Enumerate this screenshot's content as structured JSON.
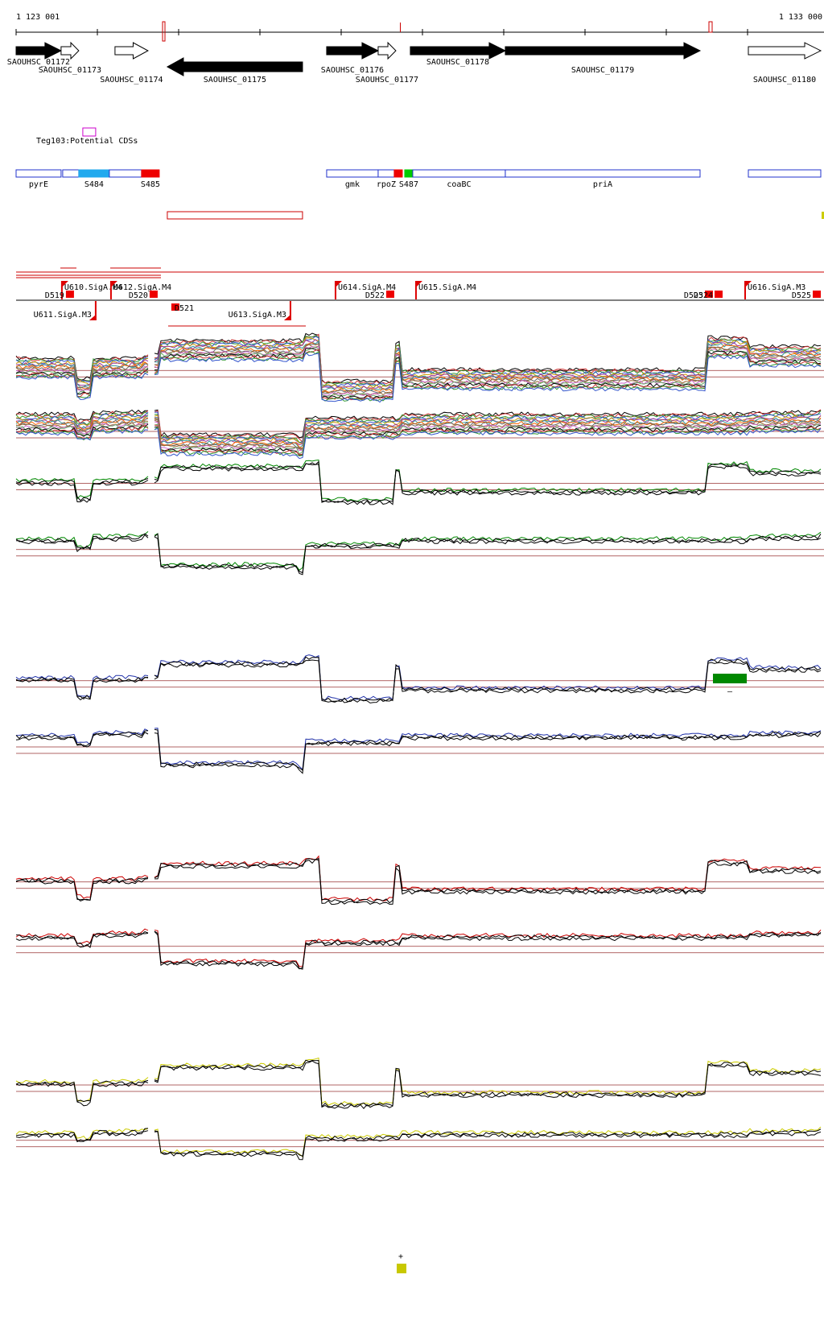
{
  "coords": {
    "start_label": "1 123 001",
    "end_label": "1 133 000",
    "start": 1123001,
    "end": 1133000
  },
  "genes": [
    {
      "label": "SAOUHSC_01172",
      "start": 1123001,
      "end": 1123560,
      "strand": "+",
      "filled": true,
      "row": 0
    },
    {
      "label": "SAOUHSC_01173",
      "start": 1123560,
      "end": 1123780,
      "strand": "+",
      "filled": false,
      "row": 1
    },
    {
      "label": "SAOUHSC_01174",
      "start": 1124230,
      "end": 1124640,
      "strand": "+",
      "filled": false,
      "row": 2
    },
    {
      "label": "SAOUHSC_01175",
      "start": 1124880,
      "end": 1126560,
      "strand": "-",
      "filled": true,
      "row": 2
    },
    {
      "label": "SAOUHSC_01176",
      "start": 1126860,
      "end": 1127500,
      "strand": "+",
      "filled": true,
      "row": 1
    },
    {
      "label": "SAOUHSC_01177",
      "start": 1127500,
      "end": 1127720,
      "strand": "+",
      "filled": false,
      "row": 2
    },
    {
      "label": "SAOUHSC_01178",
      "start": 1127900,
      "end": 1129080,
      "strand": "+",
      "filled": true,
      "row": 0
    },
    {
      "label": "SAOUHSC_01179",
      "start": 1129080,
      "end": 1131500,
      "strand": "+",
      "filled": true,
      "row": 1
    },
    {
      "label": "SAOUHSC_01180",
      "start": 1132100,
      "end": 1133000,
      "strand": "+",
      "filled": false,
      "row": 2
    }
  ],
  "potential_cds": {
    "label": "Teg103:Potential CDSs",
    "start": 1123830,
    "end": 1123990
  },
  "features": [
    {
      "label": "pyrE",
      "start": 1123001,
      "end": 1123560,
      "color": "none"
    },
    {
      "label": "",
      "start": 1123580,
      "end": 1123780,
      "color": "none"
    },
    {
      "label": "S484",
      "start": 1123780,
      "end": 1124160,
      "color": "#22aaee"
    },
    {
      "label": "",
      "start": 1124160,
      "end": 1124560,
      "color": "none"
    },
    {
      "label": "S485",
      "start": 1124560,
      "end": 1124780,
      "color": "#ee0000"
    },
    {
      "label": "gmk",
      "start": 1126860,
      "end": 1127500,
      "color": "none"
    },
    {
      "label": "rpoZ",
      "start": 1127500,
      "end": 1127700,
      "color": "none"
    },
    {
      "label": "",
      "start": 1127700,
      "end": 1127800,
      "color": "#ee0000"
    },
    {
      "label": "S487",
      "start": 1127830,
      "end": 1127930,
      "color": "#00cc00"
    },
    {
      "label": "coaBC",
      "start": 1127930,
      "end": 1129080,
      "color": "none"
    },
    {
      "label": "priA",
      "start": 1129080,
      "end": 1131500,
      "color": "none"
    },
    {
      "label": "",
      "start": 1132100,
      "end": 1133000,
      "color": "none"
    }
  ],
  "transcript_box": {
    "start": 1124880,
    "end": 1126560
  },
  "promoters": [
    {
      "label": "U610.SigA.M4",
      "pos": 1123560,
      "strand": "+"
    },
    {
      "label": "U612.SigA.M4",
      "pos": 1124170,
      "strand": "+"
    },
    {
      "label": "U614.SigA.M4",
      "pos": 1126960,
      "strand": "+"
    },
    {
      "label": "U615.SigA.M4",
      "pos": 1127960,
      "strand": "+"
    },
    {
      "label": "U616.SigA.M3",
      "pos": 1132050,
      "strand": "+"
    },
    {
      "label": "U611.SigA.M3",
      "pos": 1124000,
      "strand": "-"
    },
    {
      "label": "U613.SigA.M3",
      "pos": 1126420,
      "strand": "-"
    }
  ],
  "terminators": [
    {
      "label": "D519",
      "pos": 1123620
    },
    {
      "label": "D520",
      "pos": 1124660
    },
    {
      "label": "D521",
      "pos": 1124930
    },
    {
      "label": "D522",
      "pos": 1127600
    },
    {
      "label": "D523",
      "pos": 1131560
    },
    {
      "label": "D524",
      "pos": 1131680
    },
    {
      "label": "D525",
      "pos": 1132900
    }
  ],
  "legend_items": {
    "plus_label": "+",
    "minus_label": "–",
    "yellow_color": "#c8c800",
    "green_color": "#008800"
  },
  "tracks": [
    {
      "name": "plus-all",
      "color": "multi",
      "top": 425,
      "height": 85
    },
    {
      "name": "minus-all",
      "color": "multi",
      "top": 512,
      "height": 60
    },
    {
      "name": "plus-green",
      "color": "#008800",
      "top": 572,
      "height": 70
    },
    {
      "name": "minus-green",
      "color": "#008800",
      "top": 652,
      "height": 75
    },
    {
      "name": "plus-blue",
      "color": "#2233aa",
      "top": 815,
      "height": 75
    },
    {
      "name": "minus-blue",
      "color": "#2233aa",
      "top": 895,
      "height": 80
    },
    {
      "name": "plus-red",
      "color": "#cc0000",
      "top": 1065,
      "height": 75
    },
    {
      "name": "minus-red",
      "color": "#cc0000",
      "top": 1145,
      "height": 75
    },
    {
      "name": "plus-yellow",
      "color": "#cccc00",
      "top": 1315,
      "height": 80
    },
    {
      "name": "minus-yellow",
      "color": "#cccc00",
      "top": 1395,
      "height": 55
    }
  ]
}
